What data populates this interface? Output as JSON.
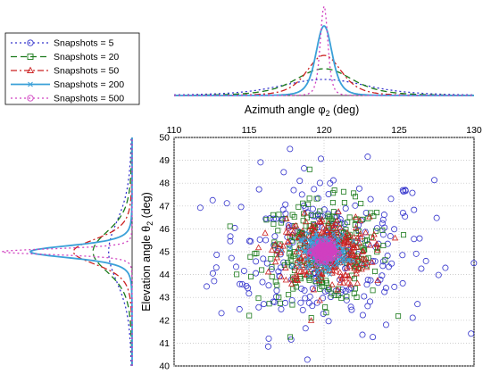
{
  "chart_data": [
    {
      "type": "line",
      "panel": "top-marginal",
      "xlabel": "Azimuth angle φ₂ (deg)",
      "xlabel_main": "Azimuth angle φ",
      "xlabel_sub": "2",
      "xlabel_unit": " (deg)",
      "xlim": [
        110,
        130
      ],
      "series": [
        {
          "name": "Snapshots = 5",
          "peak": 120,
          "width": 4.0,
          "height": 0.18
        },
        {
          "name": "Snapshots = 20",
          "peak": 120,
          "width": 2.6,
          "height": 0.3
        },
        {
          "name": "Snapshots = 50",
          "peak": 120,
          "width": 1.6,
          "height": 0.45
        },
        {
          "name": "Snapshots = 200",
          "peak": 120,
          "width": 0.75,
          "height": 0.78
        },
        {
          "name": "Snapshots = 500",
          "peak": 120,
          "width": 0.35,
          "height": 1.0
        }
      ]
    },
    {
      "type": "line",
      "panel": "left-marginal",
      "orientation": "horizontal",
      "ylim": [
        40,
        50
      ],
      "series": [
        {
          "name": "Snapshots = 5",
          "peak": 45,
          "width": 2.0,
          "height": 0.18
        },
        {
          "name": "Snapshots = 20",
          "peak": 45,
          "width": 1.3,
          "height": 0.3
        },
        {
          "name": "Snapshots = 50",
          "peak": 45,
          "width": 0.8,
          "height": 0.45
        },
        {
          "name": "Snapshots = 200",
          "peak": 45,
          "width": 0.38,
          "height": 0.78
        },
        {
          "name": "Snapshots = 500",
          "peak": 45,
          "width": 0.18,
          "height": 1.0
        }
      ]
    },
    {
      "type": "scatter",
      "panel": "main",
      "xlim": [
        110,
        130
      ],
      "ylim": [
        40,
        50
      ],
      "xticks": [
        "110",
        "115",
        "120",
        "125",
        "130"
      ],
      "yticks": [
        "40",
        "41",
        "42",
        "43",
        "44",
        "45",
        "46",
        "47",
        "48",
        "49",
        "50"
      ],
      "x_axis_position": "top",
      "ylabel_main": "Elevation angle θ",
      "ylabel_sub": "2",
      "ylabel_unit": " (deg)",
      "grid": true,
      "center": [
        120,
        45
      ],
      "series": [
        {
          "name": "Snapshots = 5",
          "marker": "circle",
          "count": 260,
          "spread": [
            3.6,
            1.8
          ]
        },
        {
          "name": "Snapshots = 20",
          "marker": "square",
          "count": 260,
          "spread": [
            2.2,
            1.1
          ]
        },
        {
          "name": "Snapshots = 50",
          "marker": "triangle",
          "count": 320,
          "spread": [
            1.5,
            0.75
          ]
        },
        {
          "name": "Snapshots = 200",
          "marker": "x",
          "count": 260,
          "spread": [
            0.75,
            0.38
          ]
        },
        {
          "name": "Snapshots = 500",
          "marker": "circle",
          "count": 220,
          "spread": [
            0.35,
            0.18
          ]
        }
      ]
    }
  ],
  "legend": {
    "placement": "top-left",
    "entries": [
      {
        "label": "Snapshots = 5",
        "color": "#3333cc",
        "dash": "2,3",
        "marker": "circle"
      },
      {
        "label": "Snapshots = 20",
        "color": "#1b7a1b",
        "dash": "7,4",
        "marker": "square"
      },
      {
        "label": "Snapshots = 50",
        "color": "#cc2222",
        "dash": "7,3,2,3",
        "marker": "triangle"
      },
      {
        "label": "Snapshots = 200",
        "color": "#3aa0d8",
        "dash": "",
        "marker": "x"
      },
      {
        "label": "Snapshots = 500",
        "color": "#d040c0",
        "dash": "2,3",
        "marker": "circle"
      }
    ]
  }
}
